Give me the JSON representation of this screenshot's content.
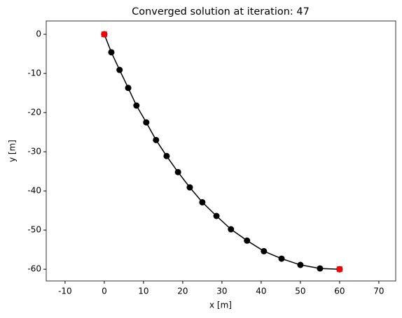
{
  "chart_data": {
    "type": "line",
    "title": "Converged solution at iteration: 47",
    "xlabel": "x [m]",
    "ylabel": "y [m]",
    "xlim": [
      -14.8,
      74.3
    ],
    "ylim": [
      -63,
      3.4
    ],
    "xticks": [
      -10,
      0,
      10,
      20,
      30,
      40,
      50,
      60,
      70
    ],
    "yticks": [
      0,
      -10,
      -20,
      -30,
      -40,
      -50,
      -60
    ],
    "series": [
      {
        "color": "#000000",
        "marker": "circle",
        "line": true,
        "x": [
          0,
          1.8,
          3.9,
          6.1,
          8.2,
          10.7,
          13.2,
          15.9,
          18.8,
          21.8,
          25,
          28.6,
          32.3,
          36.4,
          40.7,
          45.2,
          50,
          55,
          60
        ],
        "values": [
          0,
          -4.6,
          -9.1,
          -13.7,
          -18.2,
          -22.5,
          -27,
          -31.1,
          -35.2,
          -39.1,
          -42.9,
          -46.4,
          -49.8,
          -52.7,
          -55.4,
          -57.3,
          -58.9,
          -59.8,
          -60
        ]
      },
      {
        "color": "#ff0000",
        "marker": "square",
        "line": false,
        "x": [
          0,
          60
        ],
        "values": [
          0,
          -60
        ]
      }
    ]
  }
}
